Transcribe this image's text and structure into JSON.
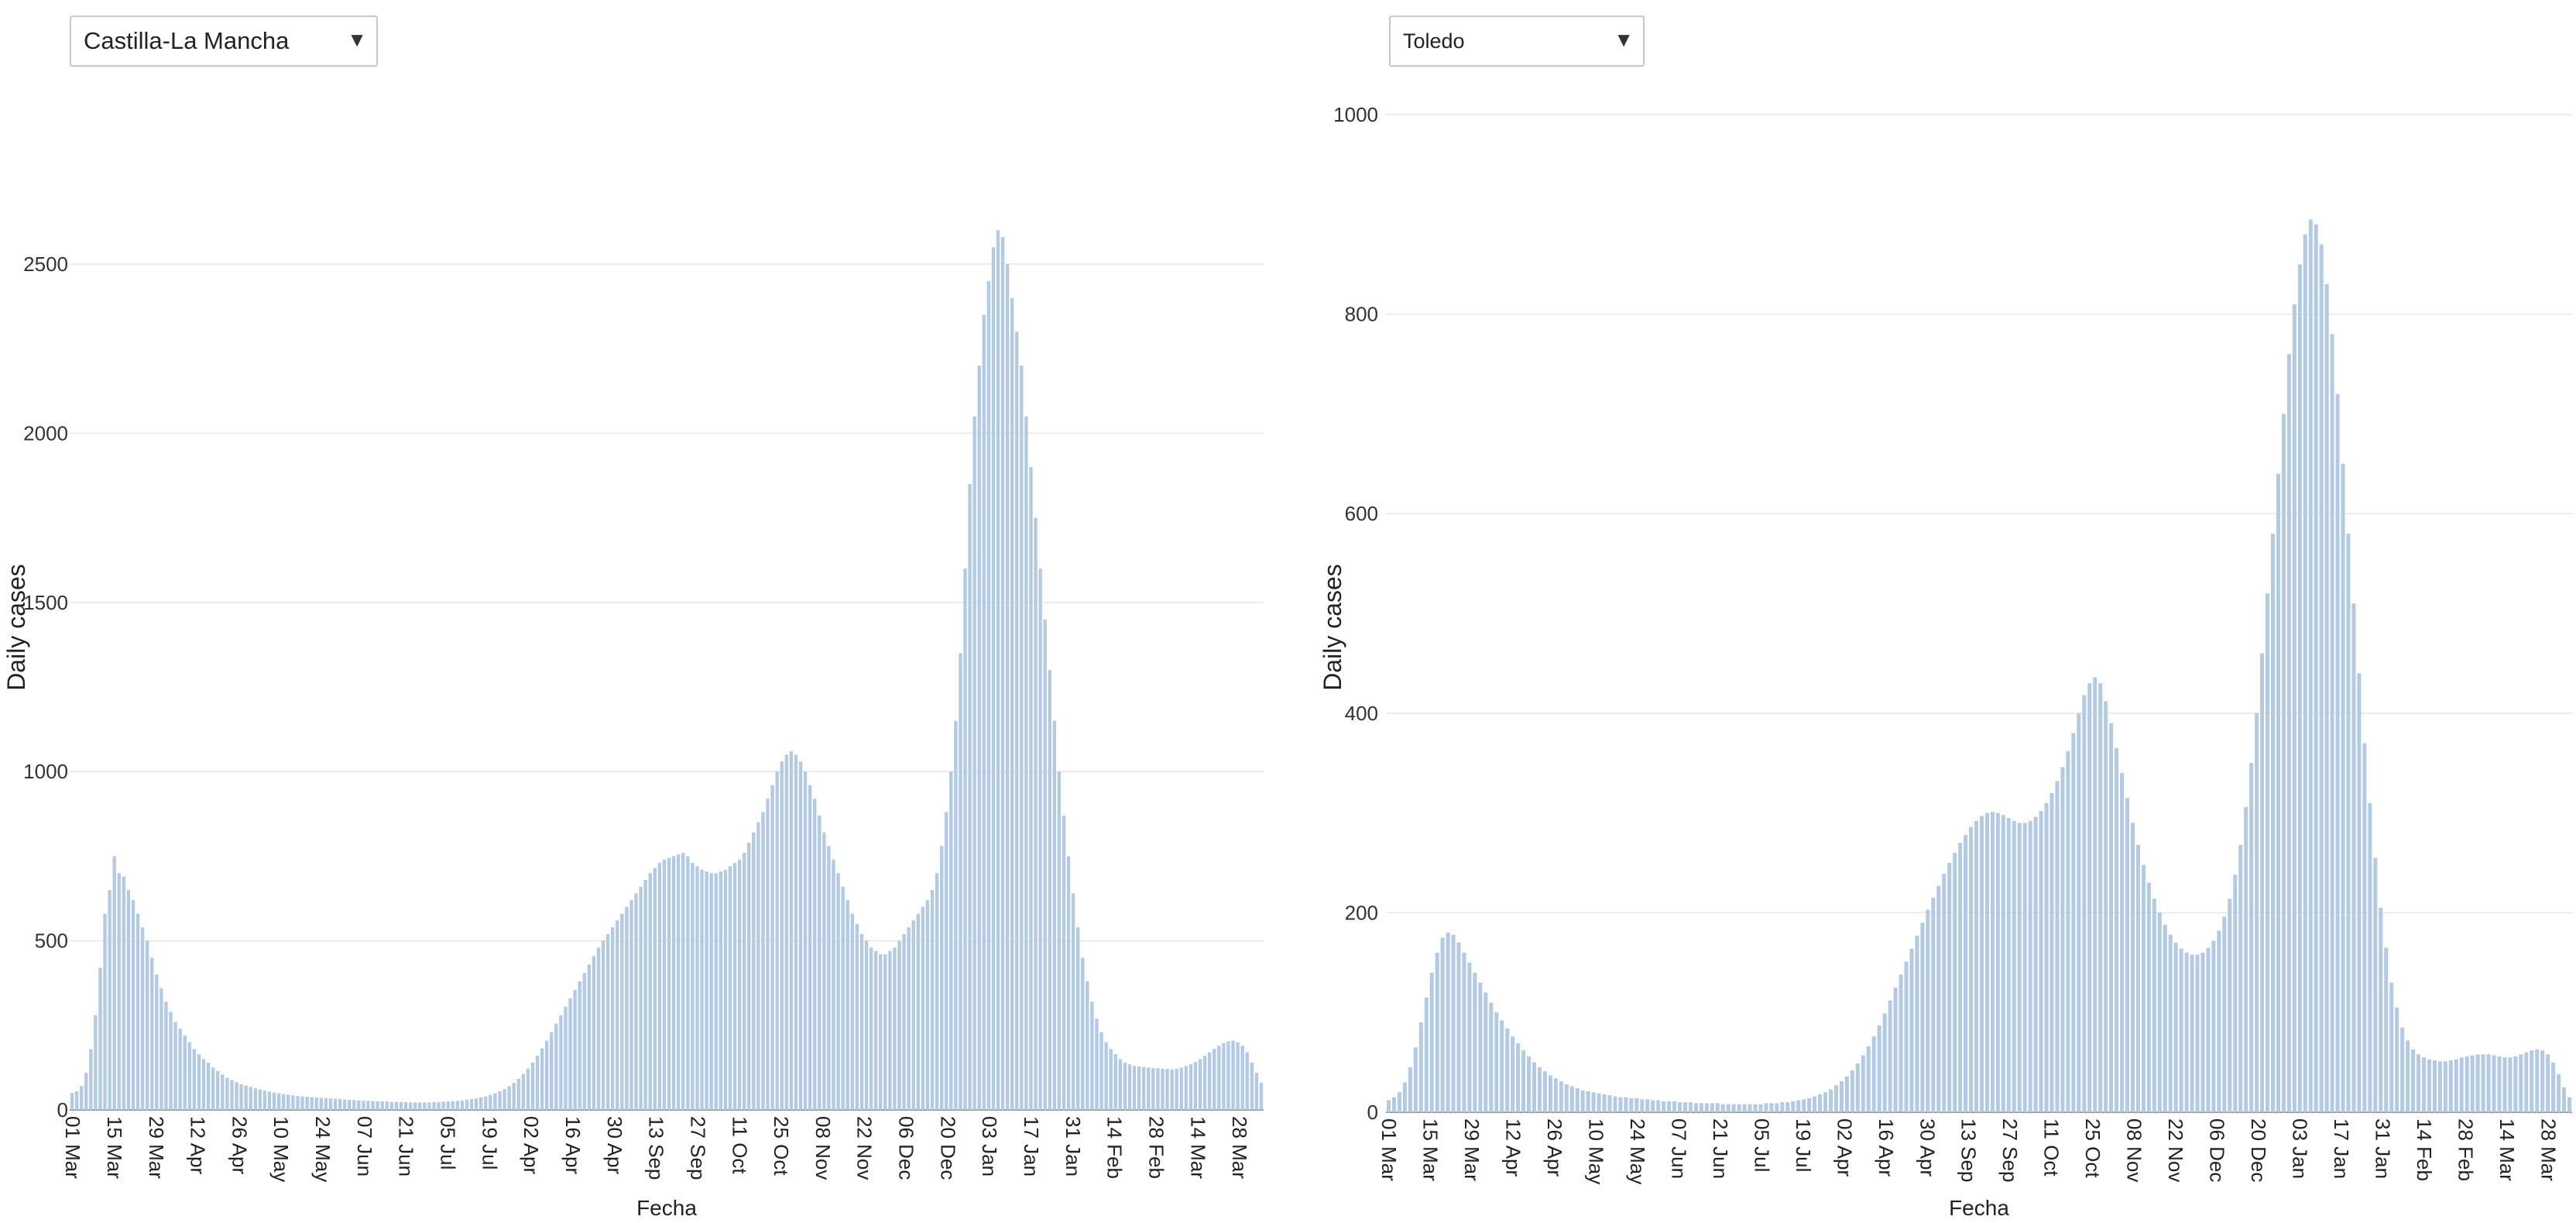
{
  "panels": [
    {
      "select": {
        "value": "Castilla-La Mancha"
      },
      "chart_data": {
        "type": "bar",
        "xlabel": "Fecha",
        "ylabel": "Daily cases",
        "ylim": [
          0,
          2800
        ],
        "yticks": [
          0,
          500,
          1000,
          1500,
          2000,
          2500
        ],
        "grid": true,
        "xtick_labels": [
          "01 Mar",
          "15 Mar",
          "29 Mar",
          "12 Apr",
          "26 Apr",
          "10 May",
          "24 May",
          "07 Jun",
          "21 Jun",
          "05 Jul",
          "19 Jul",
          "02 Apr",
          "16 Apr",
          "30 Apr",
          "13 Sep",
          "27 Sep",
          "11 Oct",
          "25 Oct",
          "08 Nov",
          "22 Nov",
          "06 Dec",
          "20 Dec",
          "03 Jan",
          "17 Jan",
          "31 Jan",
          "14 Feb",
          "28 Feb",
          "14 Mar",
          "28 Mar"
        ],
        "color": "#b3cae3",
        "values": [
          50,
          55,
          70,
          110,
          180,
          280,
          420,
          580,
          650,
          750,
          700,
          690,
          650,
          620,
          580,
          540,
          500,
          450,
          400,
          360,
          320,
          290,
          260,
          240,
          220,
          200,
          180,
          165,
          150,
          140,
          125,
          115,
          105,
          95,
          88,
          82,
          76,
          72,
          68,
          64,
          60,
          57,
          54,
          51,
          49,
          47,
          45,
          43,
          41,
          40,
          39,
          38,
          37,
          36,
          35,
          34,
          33,
          32,
          31,
          30,
          29,
          28,
          27,
          27,
          26,
          26,
          25,
          25,
          24,
          24,
          23,
          23,
          22,
          22,
          22,
          22,
          22,
          23,
          23,
          24,
          25,
          26,
          27,
          28,
          30,
          32,
          34,
          37,
          40,
          44,
          49,
          55,
          62,
          70,
          80,
          92,
          106,
          122,
          140,
          160,
          182,
          205,
          230,
          255,
          280,
          305,
          330,
          355,
          380,
          405,
          430,
          455,
          480,
          500,
          520,
          540,
          560,
          580,
          600,
          620,
          640,
          660,
          680,
          700,
          715,
          730,
          740,
          745,
          750,
          755,
          760,
          750,
          730,
          720,
          710,
          705,
          700,
          700,
          705,
          710,
          720,
          730,
          740,
          760,
          790,
          820,
          850,
          880,
          920,
          960,
          1000,
          1030,
          1050,
          1060,
          1050,
          1030,
          1000,
          960,
          920,
          870,
          820,
          780,
          740,
          700,
          660,
          620,
          580,
          550,
          520,
          500,
          480,
          470,
          460,
          460,
          470,
          480,
          500,
          520,
          540,
          560,
          580,
          600,
          620,
          650,
          700,
          780,
          880,
          1000,
          1150,
          1350,
          1600,
          1850,
          2050,
          2200,
          2350,
          2450,
          2550,
          2600,
          2580,
          2500,
          2400,
          2300,
          2200,
          2050,
          1900,
          1750,
          1600,
          1450,
          1300,
          1150,
          1000,
          870,
          750,
          640,
          540,
          450,
          380,
          320,
          270,
          230,
          200,
          180,
          165,
          150,
          140,
          135,
          130,
          128,
          126,
          125,
          124,
          123,
          122,
          121,
          120,
          122,
          125,
          130,
          135,
          142,
          150,
          160,
          170,
          180,
          190,
          198,
          203,
          205,
          200,
          190,
          170,
          140,
          110,
          80
        ]
      }
    },
    {
      "select": {
        "value": "Toledo"
      },
      "chart_data": {
        "type": "bar",
        "xlabel": "Fecha",
        "ylabel": "Daily cases",
        "ylim": [
          0,
          1000
        ],
        "yticks": [
          0,
          200,
          400,
          600,
          800,
          1000
        ],
        "grid": true,
        "xtick_labels": [
          "01 Mar",
          "15 Mar",
          "29 Mar",
          "12 Apr",
          "26 Apr",
          "10 May",
          "24 May",
          "07 Jun",
          "21 Jun",
          "05 Jul",
          "19 Jul",
          "02 Apr",
          "16 Apr",
          "30 Apr",
          "13 Sep",
          "27 Sep",
          "11 Oct",
          "25 Oct",
          "08 Nov",
          "22 Nov",
          "06 Dec",
          "20 Dec",
          "03 Jan",
          "17 Jan",
          "31 Jan",
          "14 Feb",
          "28 Feb",
          "14 Mar",
          "28 Mar"
        ],
        "color": "#b3cae3",
        "values": [
          12,
          15,
          20,
          30,
          45,
          65,
          90,
          115,
          140,
          160,
          175,
          180,
          178,
          170,
          160,
          150,
          140,
          130,
          120,
          110,
          100,
          92,
          84,
          76,
          69,
          62,
          56,
          50,
          45,
          41,
          37,
          34,
          31,
          28,
          26,
          24,
          22,
          21,
          20,
          19,
          18,
          17,
          16,
          15,
          15,
          14,
          14,
          13,
          13,
          12,
          12,
          11,
          11,
          11,
          10,
          10,
          10,
          9,
          9,
          9,
          9,
          9,
          8,
          8,
          8,
          8,
          8,
          8,
          8,
          8,
          9,
          9,
          9,
          10,
          10,
          11,
          12,
          13,
          14,
          16,
          18,
          20,
          23,
          27,
          31,
          36,
          42,
          49,
          57,
          66,
          76,
          87,
          99,
          112,
          125,
          138,
          151,
          164,
          177,
          190,
          203,
          215,
          227,
          239,
          250,
          260,
          270,
          278,
          286,
          292,
          297,
          300,
          301,
          300,
          298,
          295,
          292,
          290,
          290,
          292,
          296,
          302,
          310,
          320,
          332,
          346,
          362,
          380,
          400,
          418,
          430,
          436,
          430,
          412,
          390,
          365,
          340,
          315,
          290,
          268,
          248,
          230,
          214,
          200,
          188,
          178,
          170,
          164,
          160,
          158,
          158,
          160,
          165,
          172,
          182,
          196,
          214,
          238,
          268,
          306,
          350,
          400,
          460,
          520,
          580,
          640,
          700,
          760,
          810,
          850,
          880,
          895,
          890,
          870,
          830,
          780,
          720,
          650,
          580,
          510,
          440,
          370,
          310,
          255,
          205,
          165,
          130,
          105,
          85,
          72,
          63,
          58,
          55,
          53,
          52,
          51,
          51,
          52,
          53,
          55,
          56,
          57,
          58,
          58,
          58,
          57,
          56,
          55,
          55,
          56,
          58,
          60,
          62,
          63,
          62,
          58,
          50,
          38,
          25,
          15
        ]
      }
    }
  ]
}
